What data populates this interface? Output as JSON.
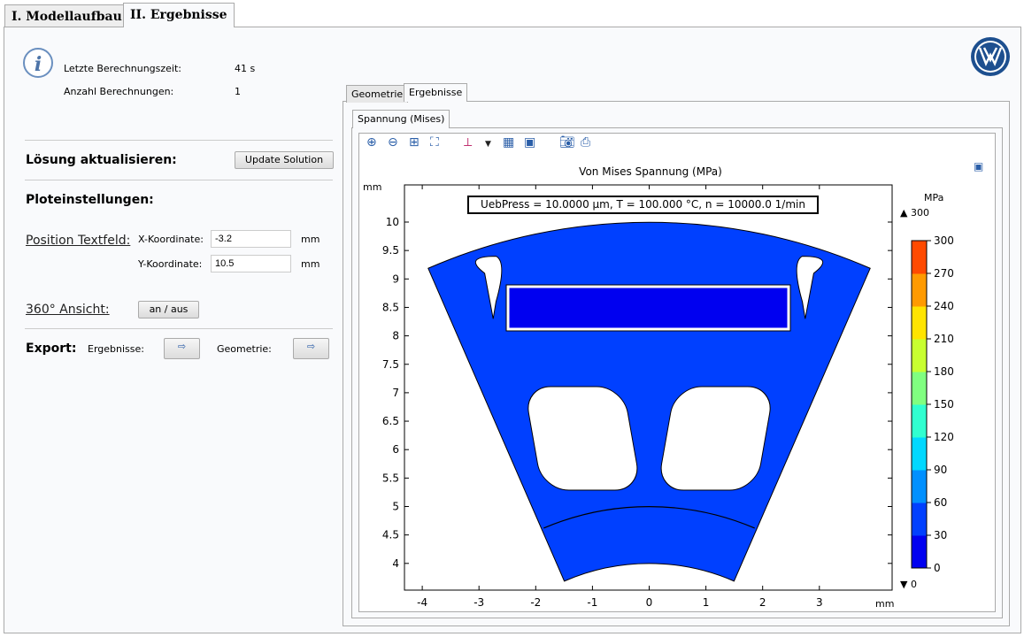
{
  "main_tabs": [
    {
      "label": "I. Modellaufbau"
    },
    {
      "label": "II. Ergebnisse"
    }
  ],
  "info": {
    "icon": "info-icon",
    "last_time_label": "Letzte Berechnungszeit:",
    "last_time_value": "41 s",
    "count_label": "Anzahl Berechnungen:",
    "count_value": "1"
  },
  "update": {
    "heading": "Lösung aktualisieren:",
    "button": "Update Solution"
  },
  "plot_settings": {
    "heading": "Ploteinstellungen:",
    "position_link": "Position Textfeld:",
    "x_label": "X-Koordinate:",
    "x_value": "-3.2",
    "x_unit": "mm",
    "y_label": "Y-Koordinate:",
    "y_value": "10.5",
    "y_unit": "mm"
  },
  "view360": {
    "link": "360° Ansicht:",
    "button": "an / aus"
  },
  "export": {
    "heading": "Export:",
    "results_label": "Ergebnisse:",
    "geometry_label": "Geometrie:",
    "icon": "export-icon"
  },
  "result_tabs": [
    {
      "label": "Geometrie"
    },
    {
      "label": "Ergebnisse"
    }
  ],
  "plot_tab": "Spannung (Mises)",
  "toolbar": [
    "zoom-in-icon",
    "zoom-out-icon",
    "zoom-box-icon",
    "zoom-extents-icon",
    "axis-orientation-icon",
    "grid-icon",
    "color-legend-icon",
    "camera-icon",
    "print-icon"
  ],
  "logo": "VW",
  "chart_data": {
    "type": "heatmap",
    "title": "Von Mises Spannung (MPa)",
    "annotation": "UebPress = 10.0000 µm, T = 100.000 °C, n = 10000.0  1/min",
    "xlabel": "mm",
    "ylabel": "mm",
    "xlim": [
      -4.4,
      4.2
    ],
    "ylim": [
      3.75,
      10.6
    ],
    "xticks": [
      "-4",
      "-3",
      "-2",
      "-1",
      "0",
      "1",
      "2",
      "3"
    ],
    "yticks": [
      "4",
      "4.5",
      "5",
      "5.5",
      "6",
      "6.5",
      "7",
      "7.5",
      "8",
      "8.5",
      "9",
      "9.5",
      "10"
    ],
    "colorbar": {
      "unit": "MPa",
      "max_label": "300",
      "min_label": "0",
      "ticks": [
        "300",
        "270",
        "240",
        "210",
        "180",
        "150",
        "120",
        "90",
        "60",
        "30",
        "0"
      ],
      "colors": [
        "#0000f0",
        "#0040ff",
        "#0090ff",
        "#00d8ff",
        "#30ffd0",
        "#80ff80",
        "#c8ff30",
        "#ffe400",
        "#ff9a00",
        "#ff4a00"
      ]
    }
  }
}
